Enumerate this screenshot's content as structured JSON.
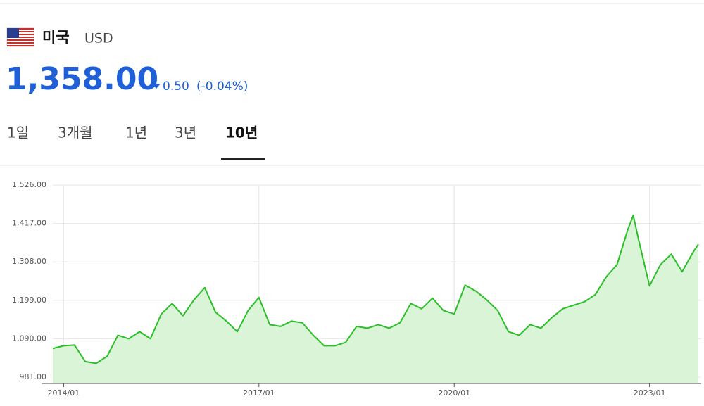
{
  "header": {
    "country": "미국",
    "currency": "USD",
    "price": "1,358.00",
    "change": "0.50",
    "change_pct": "(-0.04%)"
  },
  "tabs": [
    "1일",
    "3개월",
    "1년",
    "3년",
    "10년"
  ],
  "active_tab": 4,
  "chart_data": {
    "type": "line",
    "x": [
      "2013/11",
      "2014/01",
      "2014/03",
      "2014/05",
      "2014/07",
      "2014/09",
      "2014/11",
      "2015/01",
      "2015/03",
      "2015/05",
      "2015/07",
      "2015/09",
      "2015/11",
      "2016/01",
      "2016/03",
      "2016/05",
      "2016/07",
      "2016/09",
      "2016/11",
      "2017/01",
      "2017/03",
      "2017/05",
      "2017/07",
      "2017/09",
      "2017/11",
      "2018/01",
      "2018/03",
      "2018/05",
      "2018/07",
      "2018/09",
      "2018/11",
      "2019/01",
      "2019/03",
      "2019/05",
      "2019/07",
      "2019/09",
      "2019/11",
      "2020/01",
      "2020/03",
      "2020/05",
      "2020/07",
      "2020/09",
      "2020/11",
      "2021/01",
      "2021/03",
      "2021/05",
      "2021/07",
      "2021/09",
      "2021/11",
      "2022/01",
      "2022/03",
      "2022/05",
      "2022/07",
      "2022/09",
      "2022/10",
      "2022/11",
      "2023/01",
      "2023/03",
      "2023/05",
      "2023/07",
      "2023/09",
      "2023/10"
    ],
    "values": [
      1062,
      1070,
      1072,
      1025,
      1020,
      1040,
      1100,
      1090,
      1110,
      1090,
      1160,
      1190,
      1155,
      1200,
      1235,
      1165,
      1140,
      1110,
      1170,
      1207,
      1130,
      1125,
      1140,
      1135,
      1100,
      1070,
      1070,
      1080,
      1125,
      1120,
      1130,
      1120,
      1135,
      1190,
      1175,
      1205,
      1170,
      1160,
      1242,
      1225,
      1200,
      1170,
      1110,
      1100,
      1130,
      1120,
      1150,
      1175,
      1185,
      1195,
      1215,
      1265,
      1300,
      1400,
      1440,
      1370,
      1240,
      1300,
      1330,
      1280,
      1335,
      1358
    ],
    "color": "#2bbf27",
    "fill": "#daf4d8",
    "xlim": [
      "2013/11",
      "2023/10"
    ],
    "xticks": [
      "2014/01",
      "2017/01",
      "2020/01",
      "2023/01"
    ],
    "ylim": [
      963,
      1526
    ],
    "yticks": [
      {
        "value": 981,
        "label": "981.00"
      },
      {
        "value": 1090,
        "label": "1,090.00"
      },
      {
        "value": 1199,
        "label": "1,199.00"
      },
      {
        "value": 1308,
        "label": "1,308.00"
      },
      {
        "value": 1417,
        "label": "1,417.00"
      },
      {
        "value": 1526,
        "label": "1,526.00"
      }
    ],
    "grid": true
  }
}
